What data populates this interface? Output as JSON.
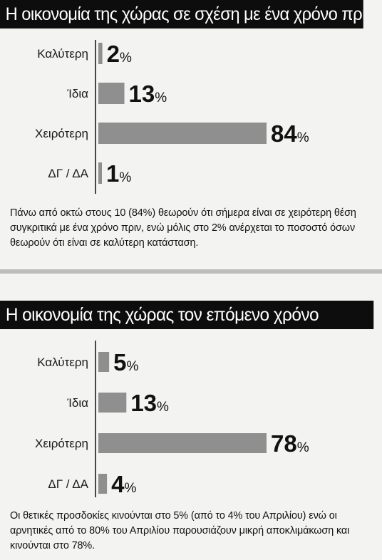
{
  "colors": {
    "title_bg": "#0d0d0d",
    "title_fg": "#ffffff",
    "bar_fill": "#8f8f8f",
    "axis": "#1a1a1a",
    "background": "#f3f3f1"
  },
  "panels": [
    {
      "title": "Η οικονομία της χώρας σε σχέση με ένα χρόνο πριν",
      "caption": "Πάνω από οκτώ στους 10 (84%) θεωρούν ότι σήμερα είναι σε χειρότερη θέση συγκριτικά με ένα χρόνο πριν, ενώ μόλις στο 2% ανέρχεται το ποσοστό όσων θεωρούν ότι είναι σε καλύτερη κατάσταση."
    },
    {
      "title": "Η οικονομία της χώρας τον επόμενο χρόνο",
      "caption": "Οι θετικές προσδοκίες κινούνται στο 5% (από το 4% του Απριλίου) ενώ οι αρνητικές από το 80% του Απριλίου παρουσιάζουν μικρή αποκλιμάκωση και κινούνται στο 78%."
    }
  ],
  "chart_data": [
    {
      "type": "bar",
      "orientation": "horizontal",
      "title": "Η οικονομία της χώρας σε σχέση με ένα χρόνο πριν",
      "categories": [
        "Καλύτερη",
        "Ίδια",
        "Χειρότερη",
        "ΔΓ / ΔΑ"
      ],
      "values": [
        2,
        13,
        84,
        1
      ],
      "value_labels": [
        "2",
        "13",
        "84",
        "1"
      ],
      "unit": "%",
      "xlim": [
        0,
        100
      ],
      "grid": false
    },
    {
      "type": "bar",
      "orientation": "horizontal",
      "title": "Η οικονομία της χώρας τον επόμενο χρόνο",
      "categories": [
        "Καλύτερη",
        "Ίδια",
        "Χειρότερη",
        "ΔΓ / ΔΑ"
      ],
      "values": [
        5,
        13,
        78,
        4
      ],
      "value_labels": [
        "5",
        "13",
        "78",
        "4"
      ],
      "unit": "%",
      "xlim": [
        0,
        100
      ],
      "grid": false
    }
  ]
}
